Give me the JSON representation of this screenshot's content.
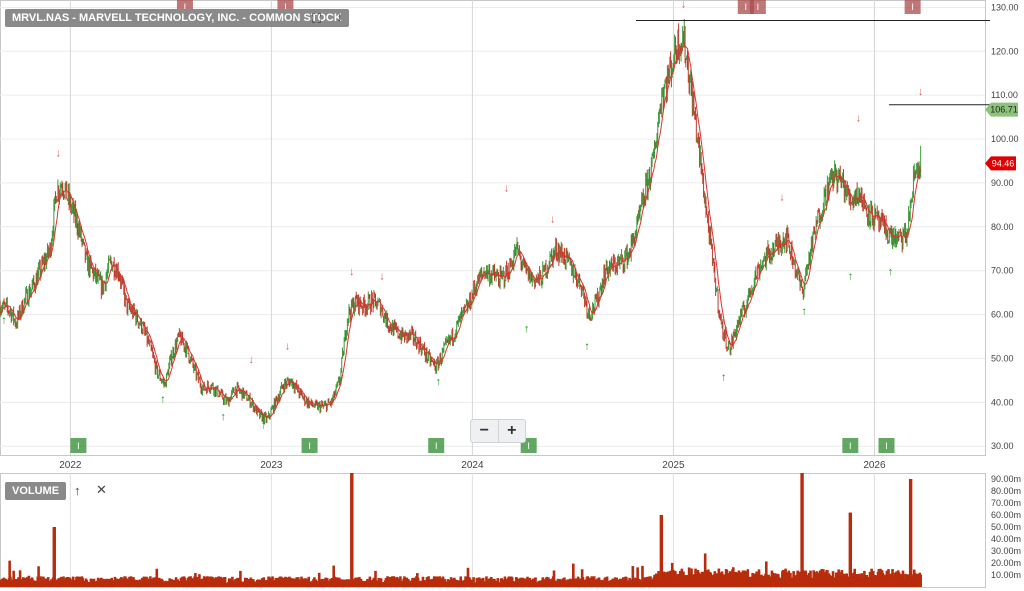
{
  "header": {
    "symbol_label": "MRVL.NAS - MARVELL TECHNOLOGY, INC. - COMMON STOCK",
    "expand_icon": "expand-icon",
    "download_icon": "arrow-down-icon"
  },
  "volume_panel": {
    "label": "VOLUME",
    "move_up_icon": "arrow-up-icon",
    "close_icon": "close-icon"
  },
  "zoom": {
    "minus": "−",
    "plus": "+"
  },
  "price_badges": {
    "last": "106.71",
    "marker": "94.46"
  },
  "colors": {
    "up": "#3a9a3a",
    "down": "#c0392b",
    "ma": "#e03030",
    "last_badge": "#8cc37a",
    "marker_badge": "#e00000",
    "volume": "#b82c0c",
    "event_green": "#2e8b2e",
    "event_red": "#a94a4a"
  },
  "chart_data": [
    {
      "type": "line",
      "title": "",
      "xlabel": "",
      "ylabel": "",
      "x_ticks": [
        "2022",
        "2023",
        "2024",
        "2025",
        "2026"
      ],
      "y_ticks": [
        "30.00",
        "40.00",
        "50.00",
        "60.00",
        "70.00",
        "80.00",
        "90.00",
        "100.00",
        "110.00",
        "120.00",
        "130.00"
      ],
      "ylim": [
        28,
        131
      ],
      "xlim": [
        2021.65,
        2026.55
      ],
      "grid": true,
      "series": [
        {
          "values": [
            [
              2021.65,
              62
            ],
            [
              2021.7,
              61
            ],
            [
              2021.73,
              58
            ],
            [
              2021.77,
              63
            ],
            [
              2021.82,
              67
            ],
            [
              2021.86,
              71
            ],
            [
              2021.9,
              75
            ],
            [
              2021.93,
              88
            ],
            [
              2021.96,
              90
            ],
            [
              2022.0,
              85
            ],
            [
              2022.04,
              80
            ],
            [
              2022.08,
              72
            ],
            [
              2022.12,
              69
            ],
            [
              2022.16,
              66
            ],
            [
              2022.2,
              72
            ],
            [
              2022.24,
              70
            ],
            [
              2022.28,
              62
            ],
            [
              2022.32,
              60
            ],
            [
              2022.36,
              57
            ],
            [
              2022.4,
              52
            ],
            [
              2022.43,
              47
            ],
            [
              2022.47,
              44
            ],
            [
              2022.5,
              50
            ],
            [
              2022.54,
              55
            ],
            [
              2022.58,
              52
            ],
            [
              2022.62,
              47
            ],
            [
              2022.66,
              43
            ],
            [
              2022.7,
              44
            ],
            [
              2022.74,
              42
            ],
            [
              2022.78,
              40
            ],
            [
              2022.82,
              43
            ],
            [
              2022.86,
              42
            ],
            [
              2022.9,
              40
            ],
            [
              2022.94,
              37
            ],
            [
              2022.98,
              36
            ],
            [
              2023.02,
              40
            ],
            [
              2023.06,
              44
            ],
            [
              2023.1,
              45
            ],
            [
              2023.14,
              42
            ],
            [
              2023.18,
              40
            ],
            [
              2023.22,
              39
            ],
            [
              2023.26,
              39
            ],
            [
              2023.3,
              40
            ],
            [
              2023.34,
              45
            ],
            [
              2023.38,
              60
            ],
            [
              2023.42,
              63
            ],
            [
              2023.46,
              62
            ],
            [
              2023.5,
              63
            ],
            [
              2023.54,
              62
            ],
            [
              2023.58,
              58
            ],
            [
              2023.62,
              56
            ],
            [
              2023.66,
              55
            ],
            [
              2023.7,
              55
            ],
            [
              2023.74,
              53
            ],
            [
              2023.78,
              50
            ],
            [
              2023.82,
              48
            ],
            [
              2023.86,
              52
            ],
            [
              2023.9,
              55
            ],
            [
              2023.94,
              59
            ],
            [
              2023.98,
              62
            ],
            [
              2024.02,
              67
            ],
            [
              2024.06,
              70
            ],
            [
              2024.1,
              69
            ],
            [
              2024.14,
              68
            ],
            [
              2024.18,
              70
            ],
            [
              2024.22,
              75
            ],
            [
              2024.26,
              70
            ],
            [
              2024.3,
              68
            ],
            [
              2024.34,
              68
            ],
            [
              2024.38,
              72
            ],
            [
              2024.42,
              75
            ],
            [
              2024.46,
              73
            ],
            [
              2024.5,
              70
            ],
            [
              2024.54,
              67
            ],
            [
              2024.58,
              60
            ],
            [
              2024.62,
              63
            ],
            [
              2024.66,
              70
            ],
            [
              2024.7,
              71
            ],
            [
              2024.74,
              72
            ],
            [
              2024.78,
              74
            ],
            [
              2024.82,
              80
            ],
            [
              2024.86,
              88
            ],
            [
              2024.9,
              95
            ],
            [
              2024.94,
              110
            ],
            [
              2024.98,
              115
            ],
            [
              2025.02,
              122
            ],
            [
              2025.05,
              123
            ],
            [
              2025.08,
              114
            ],
            [
              2025.12,
              100
            ],
            [
              2025.16,
              85
            ],
            [
              2025.2,
              70
            ],
            [
              2025.24,
              57
            ],
            [
              2025.28,
              52
            ],
            [
              2025.32,
              58
            ],
            [
              2025.36,
              62
            ],
            [
              2025.4,
              68
            ],
            [
              2025.44,
              72
            ],
            [
              2025.48,
              74
            ],
            [
              2025.52,
              76
            ],
            [
              2025.56,
              78
            ],
            [
              2025.6,
              72
            ],
            [
              2025.64,
              65
            ],
            [
              2025.68,
              74
            ],
            [
              2025.72,
              82
            ],
            [
              2025.76,
              88
            ],
            [
              2025.8,
              92
            ],
            [
              2025.84,
              90
            ],
            [
              2025.88,
              86
            ],
            [
              2025.92,
              88
            ],
            [
              2025.96,
              84
            ],
            [
              2026.0,
              82
            ],
            [
              2026.04,
              80
            ],
            [
              2026.08,
              78
            ],
            [
              2026.12,
              77
            ],
            [
              2026.16,
              78
            ],
            [
              2026.2,
              92
            ],
            [
              2026.23,
              95
            ]
          ]
        },
        {
          "name": "MA",
          "values": []
        }
      ],
      "horizontal_lines": [
        127,
        107.8
      ],
      "down_arrows": [
        [
          2021.94,
          96
        ],
        [
          2022.9,
          49
        ],
        [
          2023.08,
          52
        ],
        [
          2023.4,
          69
        ],
        [
          2023.55,
          68
        ],
        [
          2024.17,
          88
        ],
        [
          2024.4,
          81
        ],
        [
          2025.05,
          130
        ],
        [
          2025.54,
          86
        ],
        [
          2025.92,
          104
        ],
        [
          2026.23,
          110
        ]
      ],
      "up_arrows": [
        [
          2021.67,
          58
        ],
        [
          2022.46,
          40
        ],
        [
          2022.76,
          36
        ],
        [
          2022.96,
          34
        ],
        [
          2023.83,
          44
        ],
        [
          2024.27,
          56
        ],
        [
          2024.57,
          52
        ],
        [
          2025.25,
          45
        ],
        [
          2025.65,
          60
        ],
        [
          2025.88,
          68
        ],
        [
          2026.08,
          69
        ]
      ],
      "event_markers_bottom": [
        [
          2022.04,
          "I"
        ],
        [
          2023.19,
          "I"
        ],
        [
          2023.82,
          "I"
        ],
        [
          2024.28,
          "I"
        ],
        [
          2025.88,
          "I"
        ],
        [
          2026.06,
          "I"
        ]
      ],
      "event_markers_top": [
        [
          2022.57,
          "I"
        ],
        [
          2023.07,
          "I"
        ],
        [
          2025.36,
          "I"
        ],
        [
          2025.42,
          "I"
        ],
        [
          2026.19,
          "I"
        ]
      ]
    },
    {
      "type": "bar",
      "title": "VOLUME",
      "y_ticks": [
        "10.00m",
        "20.00m",
        "30.00m",
        "40.00m",
        "50.00m",
        "60.00m",
        "70.00m",
        "80.00m",
        "90.00m"
      ],
      "ylim": [
        0,
        95
      ],
      "spikes": [
        [
          2021.92,
          50
        ],
        [
          2023.4,
          95
        ],
        [
          2025.64,
          95
        ],
        [
          2026.18,
          90
        ],
        [
          2024.94,
          60
        ],
        [
          2025.88,
          62
        ]
      ]
    }
  ]
}
